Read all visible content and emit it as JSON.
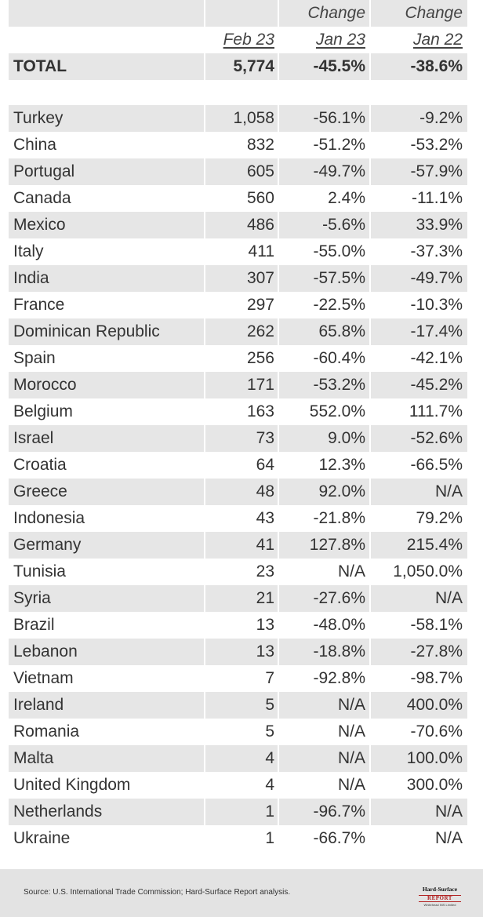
{
  "header": {
    "change_label_1": "Change",
    "change_label_2": "Change",
    "col_current": "Feb 23",
    "col_prev_month": "Jan 23",
    "col_prev_year": "Jan 22"
  },
  "total": {
    "label": "TOTAL",
    "value": "5,774",
    "mom": "-45.5%",
    "yoy": "-38.6%"
  },
  "rows": [
    {
      "country": "Turkey",
      "value": "1,058",
      "mom": "-56.1%",
      "yoy": "-9.2%"
    },
    {
      "country": "China",
      "value": "832",
      "mom": "-51.2%",
      "yoy": "-53.2%"
    },
    {
      "country": "Portugal",
      "value": "605",
      "mom": "-49.7%",
      "yoy": "-57.9%"
    },
    {
      "country": "Canada",
      "value": "560",
      "mom": "2.4%",
      "yoy": "-11.1%"
    },
    {
      "country": "Mexico",
      "value": "486",
      "mom": "-5.6%",
      "yoy": "33.9%"
    },
    {
      "country": "Italy",
      "value": "411",
      "mom": "-55.0%",
      "yoy": "-37.3%"
    },
    {
      "country": "India",
      "value": "307",
      "mom": "-57.5%",
      "yoy": "-49.7%"
    },
    {
      "country": "France",
      "value": "297",
      "mom": "-22.5%",
      "yoy": "-10.3%"
    },
    {
      "country": "Dominican Republic",
      "value": "262",
      "mom": "65.8%",
      "yoy": "-17.4%"
    },
    {
      "country": "Spain",
      "value": "256",
      "mom": "-60.4%",
      "yoy": "-42.1%"
    },
    {
      "country": "Morocco",
      "value": "171",
      "mom": "-53.2%",
      "yoy": "-45.2%"
    },
    {
      "country": "Belgium",
      "value": "163",
      "mom": "552.0%",
      "yoy": "111.7%"
    },
    {
      "country": "Israel",
      "value": "73",
      "mom": "9.0%",
      "yoy": "-52.6%"
    },
    {
      "country": "Croatia",
      "value": "64",
      "mom": "12.3%",
      "yoy": "-66.5%"
    },
    {
      "country": "Greece",
      "value": "48",
      "mom": "92.0%",
      "yoy": "N/A"
    },
    {
      "country": "Indonesia",
      "value": "43",
      "mom": "-21.8%",
      "yoy": "79.2%"
    },
    {
      "country": "Germany",
      "value": "41",
      "mom": "127.8%",
      "yoy": "215.4%"
    },
    {
      "country": "Tunisia",
      "value": "23",
      "mom": "N/A",
      "yoy": "1,050.0%"
    },
    {
      "country": "Syria",
      "value": "21",
      "mom": "-27.6%",
      "yoy": "N/A"
    },
    {
      "country": "Brazil",
      "value": "13",
      "mom": "-48.0%",
      "yoy": "-58.1%"
    },
    {
      "country": "Lebanon",
      "value": "13",
      "mom": "-18.8%",
      "yoy": "-27.8%"
    },
    {
      "country": "Vietnam",
      "value": "7",
      "mom": "-92.8%",
      "yoy": "-98.7%"
    },
    {
      "country": "Ireland",
      "value": "5",
      "mom": "N/A",
      "yoy": "400.0%"
    },
    {
      "country": "Romania",
      "value": "5",
      "mom": "N/A",
      "yoy": "-70.6%"
    },
    {
      "country": "Malta",
      "value": "4",
      "mom": "N/A",
      "yoy": "100.0%"
    },
    {
      "country": "United Kingdom",
      "value": "4",
      "mom": "N/A",
      "yoy": "300.0%"
    },
    {
      "country": "Netherlands",
      "value": "1",
      "mom": "-96.7%",
      "yoy": "N/A"
    },
    {
      "country": "Ukraine",
      "value": "1",
      "mom": "-66.7%",
      "yoy": "N/A"
    }
  ],
  "footer": {
    "source": "Source: U.S. International Trade Commission; Hard-Surface Report analysis.",
    "logo_line1": "Hard-Surface",
    "logo_line2": "REPORT",
    "logo_line3": "Whitehead INS Limited"
  },
  "colors": {
    "shade": "#e6e6e6",
    "footer_bg": "#e3e3e3",
    "logo_accent": "#b22222"
  }
}
